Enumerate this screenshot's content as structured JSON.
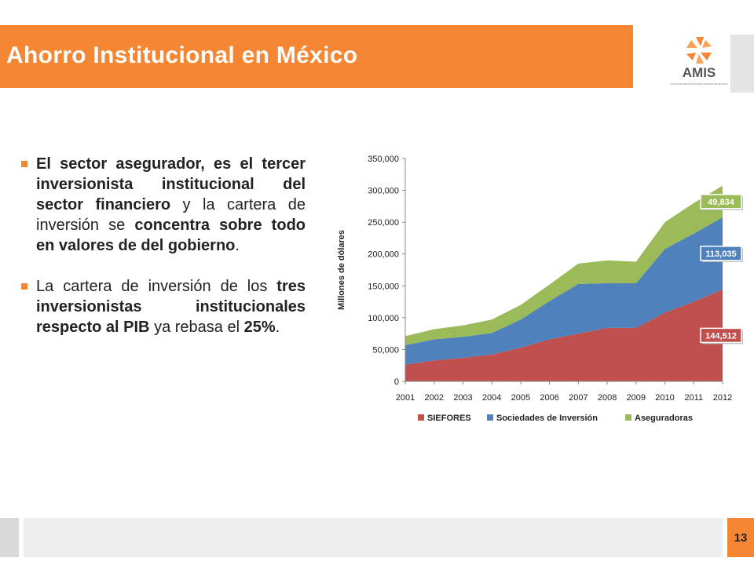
{
  "header": {
    "title": "Ahorro Institucional en México",
    "logo_text": "AMIS",
    "logo_subtext": "ASOCIACIÓN MEXICANA DE INSTITUCIONES DE SEGUROS"
  },
  "bullets": [
    {
      "segments": [
        {
          "t": "El sector asegurador, es el tercer inversionista institucional del sector financiero",
          "b": true
        },
        {
          "t": " y la cartera de inversión se ",
          "b": false
        },
        {
          "t": "concentra sobre todo en valores de del gobierno",
          "b": true
        },
        {
          "t": ".",
          "b": false
        }
      ]
    },
    {
      "segments": [
        {
          "t": "La cartera de inversión de los ",
          "b": false
        },
        {
          "t": "tres inversionistas institucionales respecto al PIB",
          "b": true
        },
        {
          "t": " ya rebasa el ",
          "b": false
        },
        {
          "t": "25%",
          "b": true
        },
        {
          "t": ".",
          "b": false
        }
      ]
    }
  ],
  "chart_data": {
    "type": "area",
    "stacked": true,
    "x": [
      "2001",
      "2002",
      "2003",
      "2004",
      "2005",
      "2006",
      "2007",
      "2008",
      "2009",
      "2010",
      "2011",
      "2012"
    ],
    "series": [
      {
        "name": "SIEFORES",
        "color": "#C0504D",
        "values": [
          26000,
          33000,
          37000,
          42000,
          53000,
          66000,
          75000,
          84000,
          84000,
          108000,
          125000,
          144512
        ]
      },
      {
        "name": "Sociedades de Inversión",
        "color": "#4F81BD",
        "values": [
          31000,
          33000,
          33000,
          34000,
          44000,
          60000,
          78000,
          70000,
          70000,
          100000,
          107000,
          113035
        ]
      },
      {
        "name": "Aseguradoras",
        "color": "#9BBB59",
        "values": [
          14000,
          16000,
          18000,
          21000,
          23000,
          26000,
          32000,
          36000,
          34000,
          42000,
          48000,
          49834
        ]
      }
    ],
    "end_labels": [
      "144,512",
      "113,035",
      "49,834"
    ],
    "ylabel": "Millones de dólares",
    "yticks": [
      "0",
      "50,000",
      "100,000",
      "150,000",
      "200,000",
      "250,000",
      "300,000",
      "350,000"
    ],
    "ylim": [
      0,
      350000
    ],
    "grid": false,
    "legend_position": "bottom"
  },
  "footer": {
    "page_number": "13"
  }
}
